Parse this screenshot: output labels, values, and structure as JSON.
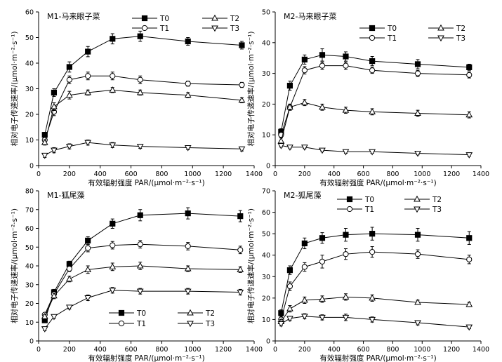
{
  "chart_data": [
    {
      "type": "line",
      "title": "M1-马来眼子菜",
      "xlabel": "有效辐射强度 PAR/(μmol·m⁻²·s⁻¹)",
      "ylabel": "相对电子传递速率/(μmol·m⁻²·s⁻¹)",
      "xlim": [
        0,
        1400
      ],
      "ylim": [
        0,
        60
      ],
      "xticks": [
        0,
        200,
        400,
        600,
        800,
        1000,
        1200,
        1400
      ],
      "yticks": [
        0,
        10,
        20,
        30,
        40,
        50,
        60
      ],
      "legend_position": "top-right",
      "x": [
        40,
        100,
        200,
        320,
        480,
        660,
        970,
        1320
      ],
      "series": [
        {
          "name": "T0",
          "marker": "square-filled",
          "values": [
            12,
            28.5,
            38.5,
            44.5,
            49.5,
            50.5,
            48.5,
            47
          ],
          "errors": [
            1,
            1.5,
            2,
            2,
            2,
            2,
            1.5,
            1.5
          ]
        },
        {
          "name": "T1",
          "marker": "circle-open",
          "values": [
            10,
            21,
            33.5,
            35,
            35,
            33.5,
            32,
            31.5
          ],
          "errors": [
            1,
            1.5,
            1.5,
            1.5,
            1.5,
            1.5,
            1,
            1
          ]
        },
        {
          "name": "T2",
          "marker": "triangle-up-open",
          "values": [
            9,
            23,
            27.5,
            28.5,
            29.5,
            28.5,
            27.5,
            25.5
          ],
          "errors": [
            1,
            1.5,
            1.5,
            1,
            1,
            1,
            1,
            1
          ]
        },
        {
          "name": "T3",
          "marker": "triangle-down-open",
          "values": [
            4,
            6,
            7.5,
            9,
            8,
            7.5,
            7,
            6.5
          ],
          "errors": [
            0.8,
            1,
            1,
            1,
            1,
            0.8,
            0.8,
            0.8
          ]
        }
      ]
    },
    {
      "type": "line",
      "title": "M2-马来眼子菜",
      "xlabel": "有效辐射强度 PAR/(μmol·m⁻²·s⁻¹)",
      "ylabel": "相对电子传递速率/(μmol·m⁻²·s⁻¹)",
      "xlim": [
        0,
        1400
      ],
      "ylim": [
        0,
        50
      ],
      "xticks": [
        0,
        200,
        400,
        600,
        800,
        1000,
        1200,
        1400
      ],
      "yticks": [
        0,
        10,
        20,
        30,
        40,
        50
      ],
      "legend_position": "top-right",
      "x": [
        40,
        100,
        200,
        320,
        480,
        660,
        970,
        1320
      ],
      "series": [
        {
          "name": "T0",
          "marker": "square-filled",
          "values": [
            11,
            26,
            34.5,
            36,
            35.5,
            34,
            33,
            32
          ],
          "errors": [
            1,
            1.5,
            1.5,
            2,
            1.5,
            1.5,
            1.5,
            1
          ]
        },
        {
          "name": "T1",
          "marker": "circle-open",
          "values": [
            10,
            19,
            31,
            32.5,
            32.5,
            31,
            30,
            29.5
          ],
          "errors": [
            1,
            1,
            1.2,
            1.2,
            1.2,
            1,
            1,
            1
          ]
        },
        {
          "name": "T2",
          "marker": "triangle-up-open",
          "values": [
            8,
            19,
            20.5,
            19,
            18,
            17.5,
            17,
            16.5
          ],
          "errors": [
            1,
            1,
            1,
            1,
            1,
            1,
            1,
            1
          ]
        },
        {
          "name": "T3",
          "marker": "triangle-down-open",
          "values": [
            6.5,
            6,
            6,
            5,
            4.5,
            4.5,
            4,
            3.5
          ],
          "errors": [
            0.5,
            0.5,
            0.5,
            0.5,
            0.5,
            0.5,
            0.5,
            0.5
          ]
        }
      ]
    },
    {
      "type": "line",
      "title": "M1-狐尾藻",
      "xlabel": "有效辐射强度 PAR/(μmol·m⁻²·s⁻¹)",
      "ylabel": "相对电子传递速率/(μmol·m⁻²·s⁻¹)",
      "xlim": [
        0,
        1400
      ],
      "ylim": [
        0,
        80
      ],
      "xticks": [
        0,
        200,
        400,
        600,
        800,
        1000,
        1200,
        1400
      ],
      "yticks": [
        0,
        10,
        20,
        30,
        40,
        50,
        60,
        70,
        80
      ],
      "legend_position": "bottom-right",
      "x": [
        40,
        100,
        200,
        320,
        480,
        660,
        970,
        1310
      ],
      "series": [
        {
          "name": "T0",
          "marker": "square-filled",
          "values": [
            11,
            26,
            41,
            53.5,
            62.5,
            67,
            68,
            66.5
          ],
          "errors": [
            1,
            1.5,
            1.5,
            2,
            2.5,
            3,
            3,
            3
          ]
        },
        {
          "name": "T1",
          "marker": "circle-open",
          "values": [
            14,
            25,
            38.5,
            49.5,
            51,
            51.5,
            50.5,
            48.5
          ],
          "errors": [
            1,
            1.5,
            1.5,
            2,
            2,
            2,
            2,
            2
          ]
        },
        {
          "name": "T2",
          "marker": "triangle-up-open",
          "values": [
            13,
            24,
            33,
            38,
            39.5,
            40,
            38.5,
            38
          ],
          "errors": [
            1,
            1.5,
            1.5,
            2,
            2,
            2,
            1.5,
            1.5
          ]
        },
        {
          "name": "T3",
          "marker": "triangle-down-open",
          "values": [
            6.5,
            13,
            18,
            23,
            27,
            26.5,
            26.5,
            26
          ],
          "errors": [
            1,
            1,
            1,
            1.5,
            1.5,
            1.5,
            1.5,
            1.5
          ]
        }
      ]
    },
    {
      "type": "line",
      "title": "M2-狐尾藻",
      "xlabel": "有效辐射强度 PAR/(μmol·m⁻²·s⁻¹)",
      "ylabel": "相对电子传递速率/(μmol·m⁻²·s⁻¹)",
      "xlim": [
        0,
        1400
      ],
      "ylim": [
        0,
        70
      ],
      "xticks": [
        0,
        200,
        400,
        600,
        800,
        1000,
        1200,
        1400
      ],
      "yticks": [
        0,
        10,
        20,
        30,
        40,
        50,
        60,
        70
      ],
      "legend_position": "top-right",
      "x": [
        40,
        100,
        200,
        320,
        480,
        660,
        970,
        1320
      ],
      "series": [
        {
          "name": "T0",
          "marker": "square-filled",
          "values": [
            13,
            33,
            45.5,
            48,
            49.5,
            50,
            49.5,
            48
          ],
          "errors": [
            1.5,
            2,
            2.5,
            2.5,
            3,
            3,
            3,
            3
          ]
        },
        {
          "name": "T1",
          "marker": "circle-open",
          "values": [
            10,
            25.5,
            34.5,
            37,
            40.5,
            41.5,
            40.5,
            38
          ],
          "errors": [
            1.5,
            2,
            2,
            3,
            2.5,
            2.5,
            2,
            2
          ]
        },
        {
          "name": "T2",
          "marker": "triangle-up-open",
          "values": [
            9,
            15,
            19,
            19.5,
            20.5,
            20,
            18,
            17
          ],
          "errors": [
            1,
            1.5,
            1.5,
            1.5,
            1.5,
            1.5,
            1,
            1
          ]
        },
        {
          "name": "T3",
          "marker": "triangle-down-open",
          "values": [
            8,
            10.5,
            11.5,
            11,
            11,
            10,
            8.5,
            6.5
          ],
          "errors": [
            1,
            1,
            1.2,
            1.2,
            1.5,
            1.2,
            1,
            0.8
          ]
        }
      ]
    }
  ]
}
